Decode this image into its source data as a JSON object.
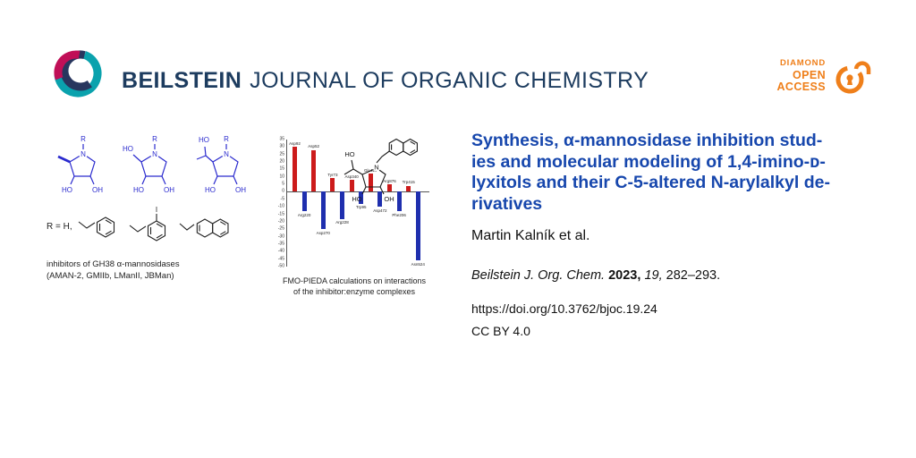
{
  "header": {
    "brand": "BEILSTEIN",
    "journal_name": "JOURNAL OF ORGANIC CHEMISTRY"
  },
  "badge": {
    "line1": "DIAMOND",
    "line2": "OPEN",
    "line3": "ACCESS"
  },
  "left_panel": {
    "r_label": "R = H,",
    "caption_line1": "inhibitors of GH38 α-mannosidases",
    "caption_line2": "(AMAN-2, GMIIb, LManII, JBMan)",
    "labels": {
      "n": "N",
      "r": "R",
      "ho": "HO",
      "oh": "OH",
      "iodo": "I"
    }
  },
  "chart_panel": {
    "caption_line1": "FMO-PIEDA calculations on interactions",
    "caption_line2": "of the inhibitor:enzyme complexes",
    "molecule_labels": {
      "ho": "HO",
      "oh": "OH",
      "n": "N"
    }
  },
  "chart_data": {
    "type": "bar",
    "title": "FMO-PIEDA calculations on interactions of the inhibitor:enzyme complexes",
    "categories": [
      "Asp92",
      "Arg220",
      "Asp52",
      "Asp270",
      "Tyr73",
      "Arg228",
      "Asp340",
      "Trp95",
      "Glu426",
      "Asp472",
      "Arg876",
      "Phe206",
      "Trp415",
      "Asn524"
    ],
    "values": [
      30,
      -13,
      28,
      -25,
      9,
      -18,
      8,
      -8,
      12,
      -10,
      5,
      -13,
      4,
      -46
    ],
    "ylim": [
      -50,
      35
    ],
    "ytick_step": 5,
    "bar_colors": {
      "positive": "#cc1b1b",
      "negative": "#1f2fae"
    },
    "xlabel": "",
    "ylabel": "",
    "grid": false,
    "legend": "none"
  },
  "article": {
    "title_lines": [
      "Synthesis, α-mannosidase inhibition stud-",
      "ies and molecular modeling of 1,4-imino-ᴅ-",
      "lyxitols and their C-5-altered N-arylalkyl de-",
      "rivatives"
    ],
    "authors": "Martin Kalník et al.",
    "citation": {
      "journal": "Beilstein J. Org. Chem.",
      "year": "2023,",
      "volume": "19,",
      "pages": "282–293."
    },
    "doi": "https://doi.org/10.3762/bjoc.19.24",
    "license": "CC BY 4.0"
  }
}
